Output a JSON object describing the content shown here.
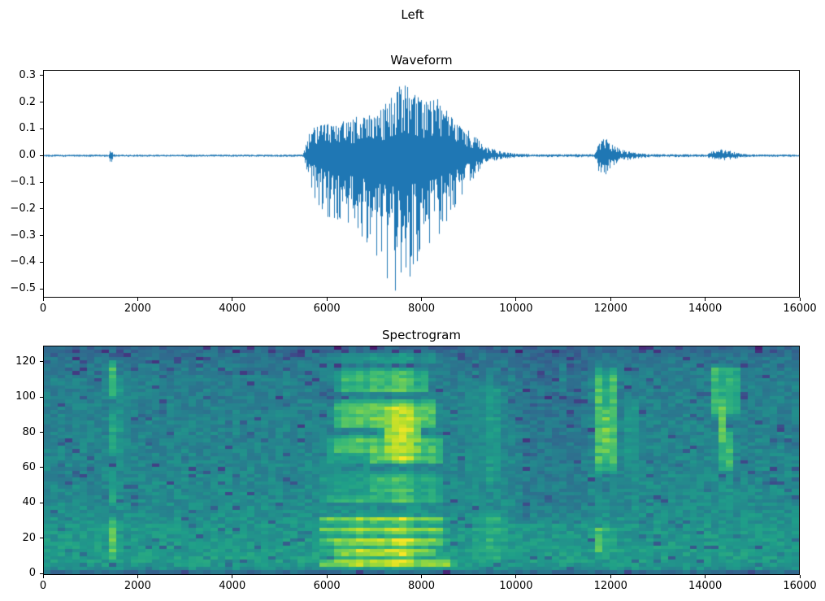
{
  "suptitle": "Left",
  "figure_bg": "#ffffff",
  "chart_data": [
    {
      "type": "line",
      "title": "Waveform",
      "xlabel": "",
      "ylabel": "",
      "xlim": [
        0,
        16000
      ],
      "ylim": [
        -0.533,
        0.321
      ],
      "line_color": "#1f77b4",
      "grid": false,
      "xticks": [
        {
          "v": 0,
          "label": "0"
        },
        {
          "v": 2000,
          "label": "2000"
        },
        {
          "v": 4000,
          "label": "4000"
        },
        {
          "v": 6000,
          "label": "6000"
        },
        {
          "v": 8000,
          "label": "8000"
        },
        {
          "v": 10000,
          "label": "10000"
        },
        {
          "v": 12000,
          "label": "12000"
        },
        {
          "v": 14000,
          "label": "14000"
        },
        {
          "v": 16000,
          "label": "16000"
        }
      ],
      "yticks": [
        {
          "v": 0.3,
          "label": "0.3"
        },
        {
          "v": 0.2,
          "label": "0.2"
        },
        {
          "v": 0.1,
          "label": "0.1"
        },
        {
          "v": 0.0,
          "label": "0.0"
        },
        {
          "v": -0.1,
          "label": "−0.1"
        },
        {
          "v": -0.2,
          "label": "−0.2"
        },
        {
          "v": -0.3,
          "label": "−0.3"
        },
        {
          "v": -0.4,
          "label": "−0.4"
        },
        {
          "v": -0.5,
          "label": "−0.5"
        }
      ],
      "envelope_note": "breakpoints [x_sample, positive_peak, negative_peak]; signal ~0 elsewhere; bursts at ~1400, 5600-9700 (main speech, max +0.27/−0.52 near x=7500), ~11900 (±0.07), ~14350 (±0.025)",
      "envelope": [
        [
          0,
          0.004,
          0.004
        ],
        [
          1360,
          0.004,
          0.004
        ],
        [
          1410,
          0.025,
          0.032
        ],
        [
          1470,
          0.006,
          0.006
        ],
        [
          1550,
          0.004,
          0.004
        ],
        [
          5480,
          0.004,
          0.004
        ],
        [
          5560,
          0.05,
          0.05
        ],
        [
          5640,
          0.1,
          0.13
        ],
        [
          5900,
          0.12,
          0.22
        ],
        [
          6200,
          0.13,
          0.26
        ],
        [
          6500,
          0.14,
          0.28
        ],
        [
          6800,
          0.16,
          0.32
        ],
        [
          7050,
          0.15,
          0.38
        ],
        [
          7250,
          0.21,
          0.47
        ],
        [
          7450,
          0.26,
          0.52
        ],
        [
          7650,
          0.27,
          0.5
        ],
        [
          7850,
          0.23,
          0.44
        ],
        [
          8100,
          0.22,
          0.37
        ],
        [
          8350,
          0.22,
          0.31
        ],
        [
          8600,
          0.15,
          0.25
        ],
        [
          8850,
          0.11,
          0.16
        ],
        [
          9050,
          0.09,
          0.1
        ],
        [
          9250,
          0.05,
          0.05
        ],
        [
          9450,
          0.03,
          0.025
        ],
        [
          9700,
          0.015,
          0.012
        ],
        [
          10000,
          0.008,
          0.008
        ],
        [
          10500,
          0.005,
          0.005
        ],
        [
          11650,
          0.006,
          0.006
        ],
        [
          11750,
          0.05,
          0.06
        ],
        [
          11900,
          0.07,
          0.07
        ],
        [
          12050,
          0.04,
          0.04
        ],
        [
          12250,
          0.022,
          0.022
        ],
        [
          12500,
          0.012,
          0.012
        ],
        [
          12800,
          0.006,
          0.006
        ],
        [
          14050,
          0.005,
          0.005
        ],
        [
          14180,
          0.02,
          0.018
        ],
        [
          14350,
          0.024,
          0.022
        ],
        [
          14550,
          0.018,
          0.016
        ],
        [
          14750,
          0.008,
          0.008
        ],
        [
          15000,
          0.005,
          0.005
        ],
        [
          16000,
          0.004,
          0.004
        ]
      ]
    },
    {
      "type": "heatmap",
      "title": "Spectrogram",
      "xlabel": "",
      "ylabel": "",
      "xlim": [
        0,
        16000
      ],
      "ylim_display": [
        -0.9,
        129.2
      ],
      "freq_bins": [
        0,
        128
      ],
      "colormap": "viridis",
      "viridis_stops": [
        "#440154",
        "#482878",
        "#3e4989",
        "#31688e",
        "#26828e",
        "#1f9e89",
        "#35b779",
        "#6ece58",
        "#b5de2b",
        "#fde725"
      ],
      "grid_cells": {
        "cols": 104,
        "rows": 64
      },
      "noise_amp": 0.13,
      "xticks": [
        {
          "v": 0,
          "label": "0"
        },
        {
          "v": 2000,
          "label": "2000"
        },
        {
          "v": 4000,
          "label": "4000"
        },
        {
          "v": 6000,
          "label": "6000"
        },
        {
          "v": 8000,
          "label": "8000"
        },
        {
          "v": 10000,
          "label": "10000"
        },
        {
          "v": 12000,
          "label": "12000"
        },
        {
          "v": 14000,
          "label": "14000"
        },
        {
          "v": 16000,
          "label": "16000"
        }
      ],
      "yticks": [
        {
          "v": 0,
          "label": "0"
        },
        {
          "v": 20,
          "label": "20"
        },
        {
          "v": 40,
          "label": "40"
        },
        {
          "v": 60,
          "label": "60"
        },
        {
          "v": 80,
          "label": "80"
        },
        {
          "v": 100,
          "label": "100"
        },
        {
          "v": 120,
          "label": "120"
        }
      ],
      "background_profile": [
        [
          0,
          0.36
        ],
        [
          2,
          0.5
        ],
        [
          6,
          0.55
        ],
        [
          25,
          0.52
        ],
        [
          40,
          0.48
        ],
        [
          55,
          0.47
        ],
        [
          75,
          0.45
        ],
        [
          95,
          0.44
        ],
        [
          110,
          0.43
        ],
        [
          118,
          0.41
        ],
        [
          124,
          0.38
        ],
        [
          128,
          0.33
        ]
      ],
      "events_note": "intensity patches 0-1 on viridis scale: click at ~1400, speech 5450-9900 with harmonic stripes at low freq and notch at f44-68, bursts at ~11900 and ~14400",
      "events": [
        {
          "x0": 1280,
          "x1": 1560,
          "f0": 4,
          "f1": 34,
          "v": 0.8
        },
        {
          "x0": 1280,
          "x1": 1560,
          "f0": 34,
          "f1": 62,
          "v": 0.62
        },
        {
          "x0": 1280,
          "x1": 1560,
          "f0": 62,
          "f1": 96,
          "v": 0.64
        },
        {
          "x0": 1280,
          "x1": 1560,
          "f0": 96,
          "f1": 124,
          "v": 0.74
        },
        {
          "x0": 1560,
          "x1": 1810,
          "f0": 55,
          "f1": 120,
          "v": 0.54
        },
        {
          "x0": 1560,
          "x1": 1790,
          "f0": 8,
          "f1": 30,
          "v": 0.56
        },
        {
          "x0": 5430,
          "x1": 9150,
          "f0": 1,
          "f1": 9,
          "v": 0.97,
          "stripes": true
        },
        {
          "x0": 5430,
          "x1": 8950,
          "f0": 9,
          "f1": 36,
          "v": 0.9,
          "stripes": true
        },
        {
          "x0": 8950,
          "x1": 9900,
          "f0": 1,
          "f1": 38,
          "v": 0.66
        },
        {
          "x0": 5500,
          "x1": 8850,
          "f0": 36,
          "f1": 60,
          "v": 0.7
        },
        {
          "x0": 5650,
          "x1": 8850,
          "f0": 60,
          "f1": 80,
          "v": 0.8
        },
        {
          "x0": 5850,
          "x1": 8650,
          "f0": 80,
          "f1": 100,
          "v": 0.84
        },
        {
          "x0": 5900,
          "x1": 8450,
          "f0": 100,
          "f1": 118,
          "v": 0.74
        },
        {
          "x0": 5550,
          "x1": 8800,
          "f0": 118,
          "f1": 126,
          "v": 0.56
        },
        {
          "x0": 7050,
          "x1": 8150,
          "f0": 58,
          "f1": 102,
          "v": 0.92
        },
        {
          "x0": 5800,
          "x1": 8600,
          "f0": 2,
          "f1": 22,
          "v": 0.98,
          "stripes": true
        },
        {
          "x0": 8850,
          "x1": 9900,
          "f0": 38,
          "f1": 118,
          "v": 0.56
        },
        {
          "x0": 5950,
          "x1": 7050,
          "f0": 44,
          "f1": 68,
          "v": 0.55,
          "mode": "damp"
        },
        {
          "x0": 9980,
          "x1": 11600,
          "f0": 28,
          "f1": 128,
          "v": -0.05,
          "mode": "add"
        },
        {
          "x0": 10850,
          "x1": 11180,
          "f0": 100,
          "f1": 122,
          "v": 0.52
        },
        {
          "x0": 11680,
          "x1": 12200,
          "f0": 48,
          "f1": 124,
          "v": 0.72
        },
        {
          "x0": 11740,
          "x1": 12080,
          "f0": 62,
          "f1": 98,
          "v": 0.88
        },
        {
          "x0": 12200,
          "x1": 12650,
          "f0": 58,
          "f1": 104,
          "v": 0.58
        },
        {
          "x0": 11700,
          "x1": 12130,
          "f0": 8,
          "f1": 28,
          "v": 0.72
        },
        {
          "x0": 11720,
          "x1": 12100,
          "f0": 28,
          "f1": 48,
          "v": 0.58
        },
        {
          "x0": 14080,
          "x1": 14800,
          "f0": 85,
          "f1": 122,
          "v": 0.68
        },
        {
          "x0": 14180,
          "x1": 14700,
          "f0": 55,
          "f1": 85,
          "v": 0.72
        },
        {
          "x0": 14260,
          "x1": 14530,
          "f0": 70,
          "f1": 102,
          "v": 0.85
        },
        {
          "x0": 14280,
          "x1": 14580,
          "f0": 35,
          "f1": 55,
          "v": 0.6
        },
        {
          "x0": 14250,
          "x1": 14620,
          "f0": 10,
          "f1": 26,
          "v": 0.55
        }
      ]
    }
  ]
}
